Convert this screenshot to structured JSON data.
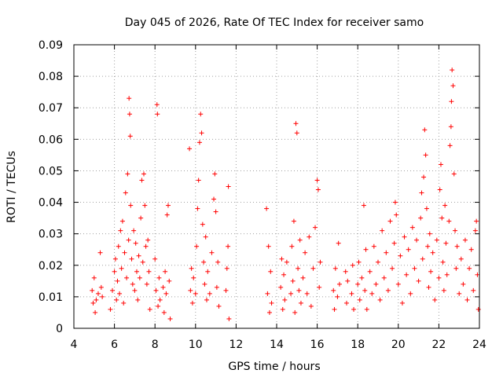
{
  "chart_data": {
    "type": "scatter",
    "title": "Day 045 of 2026, Rate Of TEC Index for receiver samo",
    "xlabel": "GPS time / hours",
    "ylabel": "ROTI / TECUs",
    "xlim": [
      4,
      24
    ],
    "ylim": [
      0,
      0.09
    ],
    "xticks": [
      4,
      6,
      8,
      10,
      12,
      14,
      16,
      18,
      20,
      22,
      24
    ],
    "xtick_labels": [
      "4",
      "6",
      "8",
      "10",
      "12",
      "14",
      "16",
      "18",
      "20",
      "22",
      "24"
    ],
    "yticks": [
      0,
      0.01,
      0.02,
      0.03,
      0.04,
      0.05,
      0.06,
      0.07,
      0.08,
      0.09
    ],
    "ytick_labels": [
      "0",
      "0.01",
      "0.02",
      "0.03",
      "0.04",
      "0.05",
      "0.06",
      "0.07",
      "0.08",
      "0.09"
    ],
    "grid": true,
    "marker": "+",
    "marker_color": "#ff0000",
    "series": [
      {
        "points": [
          [
            4.9,
            0.012
          ],
          [
            4.95,
            0.008
          ],
          [
            5.0,
            0.016
          ],
          [
            5.05,
            0.005
          ],
          [
            5.1,
            0.009
          ],
          [
            5.2,
            0.011
          ],
          [
            5.3,
            0.024
          ],
          [
            5.35,
            0.013
          ],
          [
            5.4,
            0.01
          ],
          [
            5.8,
            0.006
          ],
          [
            5.9,
            0.012
          ],
          [
            6.0,
            0.018
          ],
          [
            6.05,
            0.022
          ],
          [
            6.1,
            0.009
          ],
          [
            6.15,
            0.015
          ],
          [
            6.2,
            0.026
          ],
          [
            6.25,
            0.011
          ],
          [
            6.3,
            0.031
          ],
          [
            6.35,
            0.019
          ],
          [
            6.4,
            0.034
          ],
          [
            6.45,
            0.008
          ],
          [
            6.5,
            0.024
          ],
          [
            6.55,
            0.043
          ],
          [
            6.6,
            0.016
          ],
          [
            6.65,
            0.049
          ],
          [
            6.7,
            0.028
          ],
          [
            6.72,
            0.073
          ],
          [
            6.75,
            0.068
          ],
          [
            6.78,
            0.061
          ],
          [
            6.8,
            0.039
          ],
          [
            6.85,
            0.022
          ],
          [
            6.9,
            0.014
          ],
          [
            6.95,
            0.031
          ],
          [
            7.0,
            0.012
          ],
          [
            7.05,
            0.027
          ],
          [
            7.1,
            0.018
          ],
          [
            7.15,
            0.009
          ],
          [
            7.2,
            0.023
          ],
          [
            7.25,
            0.016
          ],
          [
            7.3,
            0.035
          ],
          [
            7.35,
            0.047
          ],
          [
            7.4,
            0.021
          ],
          [
            7.45,
            0.049
          ],
          [
            7.5,
            0.039
          ],
          [
            7.55,
            0.026
          ],
          [
            7.6,
            0.014
          ],
          [
            7.65,
            0.028
          ],
          [
            7.7,
            0.018
          ],
          [
            7.75,
            0.006
          ],
          [
            8.0,
            0.022
          ],
          [
            8.05,
            0.012
          ],
          [
            8.1,
            0.071
          ],
          [
            8.12,
            0.068
          ],
          [
            8.15,
            0.007
          ],
          [
            8.2,
            0.016
          ],
          [
            8.25,
            0.009
          ],
          [
            8.4,
            0.013
          ],
          [
            8.45,
            0.005
          ],
          [
            8.5,
            0.018
          ],
          [
            8.55,
            0.011
          ],
          [
            8.6,
            0.036
          ],
          [
            8.65,
            0.039
          ],
          [
            8.7,
            0.015
          ],
          [
            8.75,
            0.003
          ],
          [
            9.7,
            0.057
          ],
          [
            9.75,
            0.012
          ],
          [
            9.8,
            0.019
          ],
          [
            9.85,
            0.008
          ],
          [
            9.9,
            0.016
          ],
          [
            10.0,
            0.011
          ],
          [
            10.05,
            0.026
          ],
          [
            10.1,
            0.038
          ],
          [
            10.15,
            0.047
          ],
          [
            10.2,
            0.059
          ],
          [
            10.25,
            0.068
          ],
          [
            10.3,
            0.062
          ],
          [
            10.35,
            0.033
          ],
          [
            10.4,
            0.021
          ],
          [
            10.45,
            0.014
          ],
          [
            10.5,
            0.029
          ],
          [
            10.55,
            0.009
          ],
          [
            10.6,
            0.018
          ],
          [
            10.7,
            0.011
          ],
          [
            10.8,
            0.024
          ],
          [
            10.9,
            0.041
          ],
          [
            10.95,
            0.049
          ],
          [
            11.0,
            0.037
          ],
          [
            11.05,
            0.013
          ],
          [
            11.1,
            0.021
          ],
          [
            11.15,
            0.007
          ],
          [
            11.5,
            0.012
          ],
          [
            11.55,
            0.019
          ],
          [
            11.6,
            0.026
          ],
          [
            11.62,
            0.045
          ],
          [
            11.65,
            0.003
          ],
          [
            13.5,
            0.038
          ],
          [
            13.55,
            0.011
          ],
          [
            13.6,
            0.026
          ],
          [
            13.65,
            0.005
          ],
          [
            13.7,
            0.018
          ],
          [
            13.75,
            0.008
          ],
          [
            14.2,
            0.013
          ],
          [
            14.25,
            0.022
          ],
          [
            14.3,
            0.006
          ],
          [
            14.35,
            0.017
          ],
          [
            14.4,
            0.009
          ],
          [
            14.5,
            0.021
          ],
          [
            14.7,
            0.011
          ],
          [
            14.75,
            0.026
          ],
          [
            14.8,
            0.015
          ],
          [
            14.85,
            0.034
          ],
          [
            14.9,
            0.005
          ],
          [
            14.95,
            0.065
          ],
          [
            15.0,
            0.062
          ],
          [
            15.05,
            0.019
          ],
          [
            15.1,
            0.012
          ],
          [
            15.15,
            0.028
          ],
          [
            15.2,
            0.008
          ],
          [
            15.3,
            0.016
          ],
          [
            15.4,
            0.024
          ],
          [
            15.5,
            0.011
          ],
          [
            15.6,
            0.029
          ],
          [
            15.7,
            0.007
          ],
          [
            15.8,
            0.019
          ],
          [
            15.9,
            0.032
          ],
          [
            16.0,
            0.047
          ],
          [
            16.05,
            0.044
          ],
          [
            16.1,
            0.013
          ],
          [
            16.15,
            0.021
          ],
          [
            16.8,
            0.012
          ],
          [
            16.85,
            0.006
          ],
          [
            16.9,
            0.019
          ],
          [
            17.0,
            0.01
          ],
          [
            17.05,
            0.027
          ],
          [
            17.1,
            0.014
          ],
          [
            17.4,
            0.018
          ],
          [
            17.45,
            0.008
          ],
          [
            17.5,
            0.015
          ],
          [
            17.7,
            0.011
          ],
          [
            17.75,
            0.02
          ],
          [
            17.8,
            0.006
          ],
          [
            18.0,
            0.014
          ],
          [
            18.05,
            0.021
          ],
          [
            18.1,
            0.009
          ],
          [
            18.2,
            0.016
          ],
          [
            18.3,
            0.039
          ],
          [
            18.35,
            0.012
          ],
          [
            18.4,
            0.025
          ],
          [
            18.45,
            0.006
          ],
          [
            18.6,
            0.018
          ],
          [
            18.7,
            0.011
          ],
          [
            18.8,
            0.026
          ],
          [
            18.9,
            0.014
          ],
          [
            19.0,
            0.021
          ],
          [
            19.1,
            0.009
          ],
          [
            19.2,
            0.031
          ],
          [
            19.3,
            0.016
          ],
          [
            19.4,
            0.024
          ],
          [
            19.5,
            0.012
          ],
          [
            19.6,
            0.034
          ],
          [
            19.7,
            0.019
          ],
          [
            19.8,
            0.027
          ],
          [
            19.85,
            0.04
          ],
          [
            19.9,
            0.036
          ],
          [
            20.0,
            0.014
          ],
          [
            20.1,
            0.023
          ],
          [
            20.2,
            0.008
          ],
          [
            20.3,
            0.029
          ],
          [
            20.4,
            0.017
          ],
          [
            20.5,
            0.025
          ],
          [
            20.6,
            0.011
          ],
          [
            20.7,
            0.032
          ],
          [
            20.8,
            0.019
          ],
          [
            20.9,
            0.028
          ],
          [
            21.0,
            0.015
          ],
          [
            21.1,
            0.035
          ],
          [
            21.15,
            0.043
          ],
          [
            21.2,
            0.022
          ],
          [
            21.25,
            0.048
          ],
          [
            21.3,
            0.063
          ],
          [
            21.35,
            0.055
          ],
          [
            21.4,
            0.038
          ],
          [
            21.45,
            0.026
          ],
          [
            21.5,
            0.013
          ],
          [
            21.55,
            0.03
          ],
          [
            21.6,
            0.018
          ],
          [
            21.7,
            0.024
          ],
          [
            21.8,
            0.009
          ],
          [
            21.9,
            0.028
          ],
          [
            22.0,
            0.016
          ],
          [
            22.05,
            0.044
          ],
          [
            22.1,
            0.052
          ],
          [
            22.15,
            0.035
          ],
          [
            22.2,
            0.021
          ],
          [
            22.25,
            0.012
          ],
          [
            22.3,
            0.039
          ],
          [
            22.35,
            0.027
          ],
          [
            22.4,
            0.017
          ],
          [
            22.5,
            0.034
          ],
          [
            22.55,
            0.058
          ],
          [
            22.6,
            0.064
          ],
          [
            22.62,
            0.072
          ],
          [
            22.65,
            0.082
          ],
          [
            22.7,
            0.077
          ],
          [
            22.75,
            0.049
          ],
          [
            22.8,
            0.031
          ],
          [
            22.85,
            0.019
          ],
          [
            22.9,
            0.026
          ],
          [
            23.0,
            0.011
          ],
          [
            23.1,
            0.022
          ],
          [
            23.2,
            0.014
          ],
          [
            23.3,
            0.028
          ],
          [
            23.4,
            0.009
          ],
          [
            23.5,
            0.019
          ],
          [
            23.6,
            0.025
          ],
          [
            23.7,
            0.012
          ],
          [
            23.8,
            0.031
          ],
          [
            23.85,
            0.034
          ],
          [
            23.9,
            0.017
          ],
          [
            23.95,
            0.006
          ]
        ]
      }
    ]
  }
}
